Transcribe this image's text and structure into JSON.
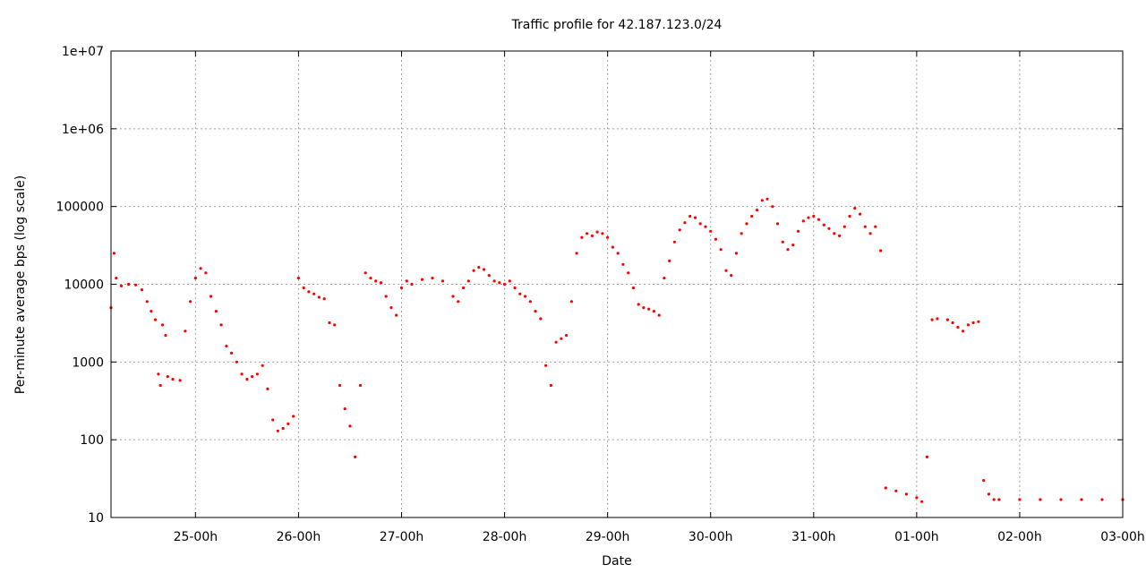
{
  "chart_data": {
    "type": "scatter",
    "title": "Traffic profile for 42.187.123.0/24",
    "xlabel": "Date",
    "ylabel": "Per-minute average bps (log scale)",
    "y_scale": "log",
    "ylim": [
      10,
      10000000
    ],
    "y_ticks": [
      {
        "value": 10,
        "label": "10"
      },
      {
        "value": 100,
        "label": "100"
      },
      {
        "value": 1000,
        "label": "1000"
      },
      {
        "value": 10000,
        "label": "10000"
      },
      {
        "value": 100000,
        "label": "100000"
      },
      {
        "value": 1000000,
        "label": "1e+06"
      },
      {
        "value": 10000000,
        "label": "1e+07"
      }
    ],
    "x_ticks": [
      "25-00h",
      "26-00h",
      "27-00h",
      "28-00h",
      "29-00h",
      "30-00h",
      "31-00h",
      "01-00h",
      "02-00h",
      "03-00h"
    ],
    "x_range_days": [
      -0.82,
      9.0
    ],
    "grid": true,
    "marker_color": "#ff0000",
    "series": [
      {
        "points": [
          [
            -0.82,
            5000
          ],
          [
            -0.79,
            25000
          ],
          [
            -0.77,
            12000
          ],
          [
            -0.72,
            9500
          ],
          [
            -0.65,
            10000
          ],
          [
            -0.58,
            9800
          ],
          [
            -0.52,
            8500
          ],
          [
            -0.47,
            6000
          ],
          [
            -0.43,
            4500
          ],
          [
            -0.39,
            3500
          ],
          [
            -0.36,
            700
          ],
          [
            -0.34,
            500
          ],
          [
            -0.32,
            3000
          ],
          [
            -0.29,
            2200
          ],
          [
            -0.27,
            650
          ],
          [
            -0.22,
            600
          ],
          [
            -0.15,
            580
          ],
          [
            -0.1,
            2500
          ],
          [
            -0.05,
            6000
          ],
          [
            0.0,
            12000
          ],
          [
            0.05,
            16000
          ],
          [
            0.1,
            14000
          ],
          [
            0.15,
            7000
          ],
          [
            0.2,
            4500
          ],
          [
            0.25,
            3000
          ],
          [
            0.3,
            1600
          ],
          [
            0.35,
            1300
          ],
          [
            0.4,
            1000
          ],
          [
            0.45,
            700
          ],
          [
            0.5,
            600
          ],
          [
            0.55,
            650
          ],
          [
            0.6,
            700
          ],
          [
            0.65,
            900
          ],
          [
            0.7,
            450
          ],
          [
            0.75,
            180
          ],
          [
            0.8,
            130
          ],
          [
            0.85,
            140
          ],
          [
            0.9,
            160
          ],
          [
            0.95,
            200
          ],
          [
            1.0,
            12000
          ],
          [
            1.05,
            9000
          ],
          [
            1.1,
            8000
          ],
          [
            1.15,
            7500
          ],
          [
            1.2,
            6800
          ],
          [
            1.25,
            6500
          ],
          [
            1.3,
            3200
          ],
          [
            1.35,
            3000
          ],
          [
            1.4,
            500
          ],
          [
            1.45,
            250
          ],
          [
            1.5,
            150
          ],
          [
            1.55,
            60
          ],
          [
            1.6,
            500
          ],
          [
            1.65,
            14000
          ],
          [
            1.7,
            12000
          ],
          [
            1.75,
            11000
          ],
          [
            1.8,
            10500
          ],
          [
            1.85,
            7000
          ],
          [
            1.9,
            5000
          ],
          [
            1.95,
            4000
          ],
          [
            2.0,
            9000
          ],
          [
            2.05,
            11000
          ],
          [
            2.1,
            10000
          ],
          [
            2.2,
            11500
          ],
          [
            2.3,
            12000
          ],
          [
            2.4,
            11000
          ],
          [
            2.5,
            7000
          ],
          [
            2.55,
            6000
          ],
          [
            2.6,
            9000
          ],
          [
            2.65,
            11000
          ],
          [
            2.7,
            15000
          ],
          [
            2.75,
            16500
          ],
          [
            2.8,
            15500
          ],
          [
            2.85,
            13000
          ],
          [
            2.9,
            11000
          ],
          [
            2.95,
            10500
          ],
          [
            3.0,
            10000
          ],
          [
            3.05,
            11000
          ],
          [
            3.1,
            9000
          ],
          [
            3.15,
            7500
          ],
          [
            3.2,
            7000
          ],
          [
            3.25,
            6000
          ],
          [
            3.3,
            4500
          ],
          [
            3.35,
            3600
          ],
          [
            3.4,
            900
          ],
          [
            3.45,
            500
          ],
          [
            3.5,
            1800
          ],
          [
            3.55,
            2000
          ],
          [
            3.6,
            2200
          ],
          [
            3.65,
            6000
          ],
          [
            3.7,
            25000
          ],
          [
            3.75,
            40000
          ],
          [
            3.8,
            45000
          ],
          [
            3.85,
            42000
          ],
          [
            3.9,
            47000
          ],
          [
            3.95,
            45000
          ],
          [
            4.0,
            40000
          ],
          [
            4.05,
            30000
          ],
          [
            4.1,
            25000
          ],
          [
            4.15,
            18000
          ],
          [
            4.2,
            14000
          ],
          [
            4.25,
            9000
          ],
          [
            4.3,
            5500
          ],
          [
            4.35,
            5000
          ],
          [
            4.4,
            4800
          ],
          [
            4.45,
            4500
          ],
          [
            4.5,
            4000
          ],
          [
            4.55,
            12000
          ],
          [
            4.6,
            20000
          ],
          [
            4.65,
            35000
          ],
          [
            4.7,
            50000
          ],
          [
            4.75,
            62000
          ],
          [
            4.8,
            75000
          ],
          [
            4.85,
            72000
          ],
          [
            4.9,
            60000
          ],
          [
            4.95,
            55000
          ],
          [
            5.0,
            48000
          ],
          [
            5.05,
            38000
          ],
          [
            5.1,
            28000
          ],
          [
            5.15,
            15000
          ],
          [
            5.2,
            13000
          ],
          [
            5.25,
            25000
          ],
          [
            5.3,
            45000
          ],
          [
            5.35,
            60000
          ],
          [
            5.4,
            75000
          ],
          [
            5.45,
            90000
          ],
          [
            5.5,
            120000
          ],
          [
            5.55,
            125000
          ],
          [
            5.6,
            100000
          ],
          [
            5.65,
            60000
          ],
          [
            5.7,
            35000
          ],
          [
            5.75,
            28000
          ],
          [
            5.8,
            32000
          ],
          [
            5.85,
            48000
          ],
          [
            5.9,
            65000
          ],
          [
            5.95,
            72000
          ],
          [
            6.0,
            75000
          ],
          [
            6.05,
            68000
          ],
          [
            6.1,
            58000
          ],
          [
            6.15,
            52000
          ],
          [
            6.2,
            45000
          ],
          [
            6.25,
            42000
          ],
          [
            6.3,
            55000
          ],
          [
            6.35,
            75000
          ],
          [
            6.4,
            95000
          ],
          [
            6.45,
            80000
          ],
          [
            6.5,
            55000
          ],
          [
            6.55,
            45000
          ],
          [
            6.6,
            55000
          ],
          [
            6.65,
            27000
          ],
          [
            6.7,
            24
          ],
          [
            6.8,
            22
          ],
          [
            6.9,
            20
          ],
          [
            7.0,
            18
          ],
          [
            7.05,
            16
          ],
          [
            7.1,
            60
          ],
          [
            7.15,
            3500
          ],
          [
            7.2,
            3600
          ],
          [
            7.3,
            3500
          ],
          [
            7.35,
            3200
          ],
          [
            7.4,
            2800
          ],
          [
            7.45,
            2500
          ],
          [
            7.5,
            3000
          ],
          [
            7.55,
            3200
          ],
          [
            7.6,
            3300
          ],
          [
            7.65,
            30
          ],
          [
            7.7,
            20
          ],
          [
            7.75,
            17
          ],
          [
            7.8,
            17
          ],
          [
            8.0,
            17
          ],
          [
            8.2,
            17
          ],
          [
            8.4,
            17
          ],
          [
            8.6,
            17
          ],
          [
            8.8,
            17
          ],
          [
            9.0,
            17
          ]
        ]
      }
    ]
  }
}
